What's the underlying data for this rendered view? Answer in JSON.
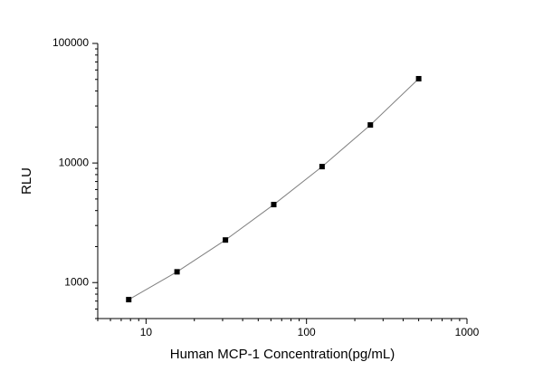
{
  "chart_data": {
    "type": "scatter",
    "x_label": "Human MCP-1 Concentration(pg/mL)",
    "y_label": "RLU",
    "x": [
      7.8,
      15.6,
      31.25,
      62.5,
      125,
      250,
      500
    ],
    "series": [
      {
        "color": "#000000",
        "line_color": "#808080",
        "values": [
          720,
          1230,
          2270,
          4490,
          9330,
          20800,
          50700
        ]
      }
    ],
    "xscale": "log",
    "yscale": "log",
    "xlim": [
      5,
      1000
    ],
    "ylim": [
      500,
      100000
    ],
    "xticks": [
      10,
      100,
      1000
    ],
    "yticks": [
      1000,
      10000,
      100000
    ]
  }
}
